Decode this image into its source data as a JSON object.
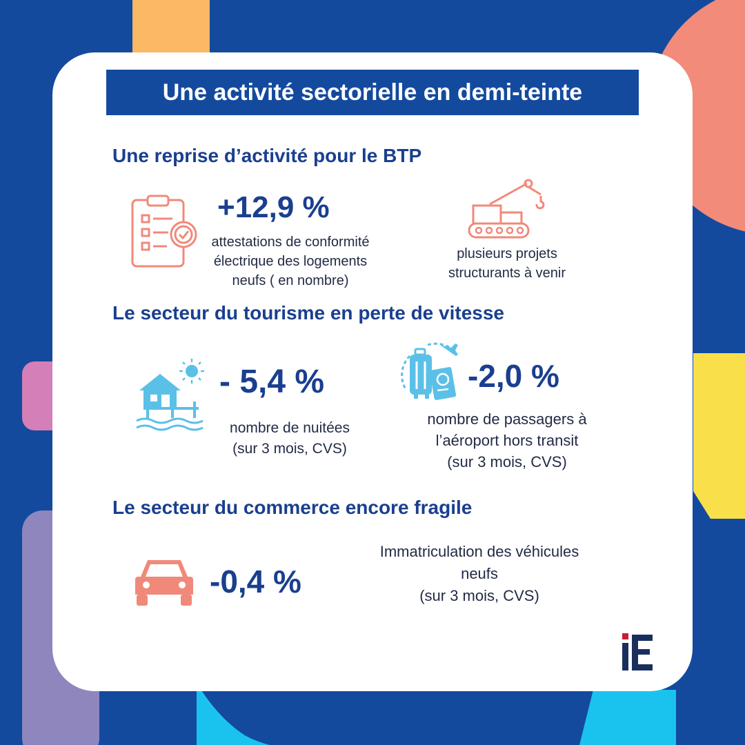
{
  "header": {
    "title": "Une activité sectorielle en demi-teinte"
  },
  "sections": [
    {
      "title": "Une reprise d’activité pour le BTP",
      "items": [
        {
          "value": "+12,9 %",
          "lines": [
            "attestations de conformité",
            "électrique des logements",
            "neufs ( en nombre)"
          ],
          "icon": "clipboard-check-icon"
        },
        {
          "value": "",
          "lines": [
            "plusieurs projets",
            "structurants à venir"
          ],
          "icon": "crane-icon"
        }
      ]
    },
    {
      "title": "Le secteur du tourisme en perte de vitesse",
      "items": [
        {
          "value": "- 5,4 %",
          "lines": [
            "nombre de nuitées",
            "(sur 3 mois, CVS)"
          ],
          "icon": "beach-house-icon"
        },
        {
          "value": "-2,0 %",
          "lines": [
            "nombre de passagers à",
            "l’aéroport hors transit",
            "(sur 3 mois, CVS)"
          ],
          "icon": "travel-luggage-icon"
        }
      ]
    },
    {
      "title": "Le secteur du commerce encore fragile",
      "items": [
        {
          "value": "-0,4 %",
          "lines": [
            "Immatriculation des véhicules",
            "neufs",
            "(sur 3 mois, CVS)"
          ],
          "icon": "car-icon"
        }
      ]
    }
  ],
  "logo": {
    "text": "iE",
    "icon": "ie-logo"
  },
  "colors": {
    "navy": "#134a9e",
    "heading": "#1a3f8f",
    "salmon": "#f0897a",
    "sky": "#5bc0e8",
    "yellow": "#fbe14b",
    "orange": "#fbb865"
  }
}
